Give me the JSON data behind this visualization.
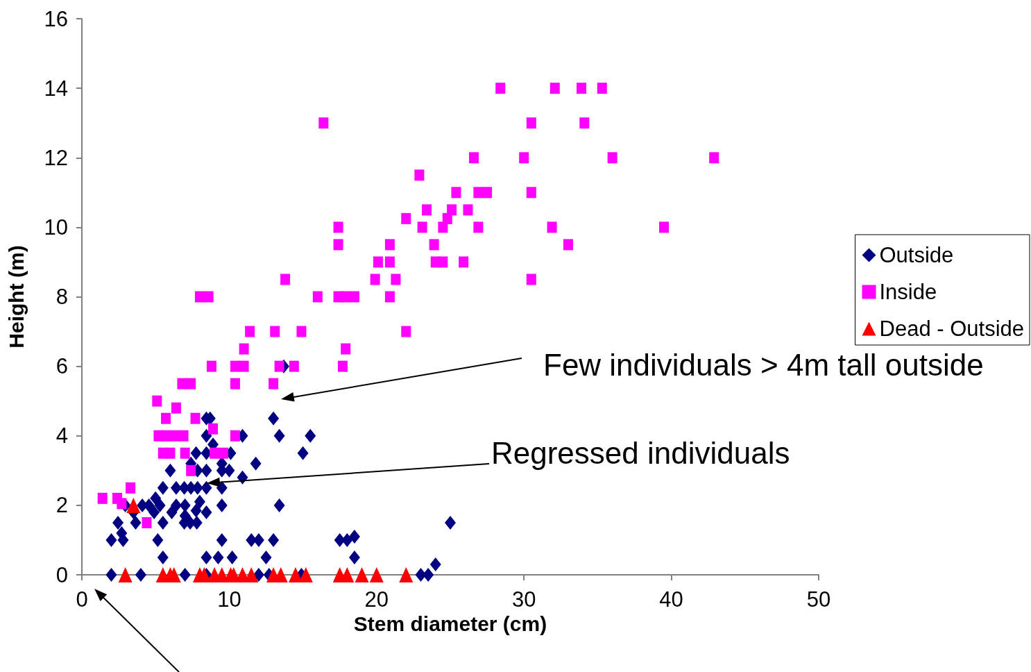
{
  "chart_data": {
    "type": "scatter",
    "xlabel": "Stem diameter (cm)",
    "ylabel": "Height (m)",
    "xlim": [
      0,
      50
    ],
    "xticks": [
      0,
      10,
      20,
      30,
      40,
      50
    ],
    "ylim": [
      0,
      16
    ],
    "yticks": [
      0,
      2,
      4,
      6,
      8,
      10,
      12,
      14,
      16
    ],
    "grid": false,
    "legend": "right",
    "annotations": [
      "Few individuals > 4m tall outside",
      "Regressed individuals"
    ],
    "series": [
      {
        "name": "Outside",
        "color": "#000080",
        "marker": "diamond",
        "x": [
          8.45,
          8.7,
          13.0,
          8.45,
          10.9,
          13.4,
          15.5,
          8.9,
          7.75,
          8.45,
          10.1,
          15.0,
          7.4,
          9.5,
          11.8,
          6.0,
          7.85,
          8.45,
          9.5,
          10.0,
          10.9,
          5.5,
          6.4,
          6.95,
          7.4,
          7.85,
          8.45,
          9.5,
          2.95,
          4.1,
          4.55,
          5.0,
          5.3,
          6.4,
          7.0,
          8.0,
          9.5,
          13.4,
          3.5,
          4.9,
          6.1,
          7.0,
          7.75,
          8.45,
          2.45,
          3.65,
          5.5,
          6.95,
          7.35,
          7.8,
          2.7,
          2.0,
          2.8,
          5.15,
          9.5,
          11.5,
          12.0,
          13.0,
          17.5,
          18.0,
          18.5,
          25.0,
          5.5,
          8.45,
          9.25,
          10.2,
          12.5,
          18.5,
          24.0,
          2.0,
          4.0,
          7.0,
          8.45,
          12.0,
          12.7,
          14.9,
          23.0,
          23.5,
          13.7
        ],
        "values": [
          4.5,
          4.5,
          4.5,
          4.0,
          4.0,
          4.0,
          4.0,
          3.75,
          3.5,
          3.5,
          3.5,
          3.5,
          3.2,
          3.2,
          3.2,
          3.0,
          3.0,
          3.0,
          3.0,
          3.0,
          2.8,
          2.5,
          2.5,
          2.5,
          2.5,
          2.5,
          2.5,
          2.5,
          2.0,
          2.0,
          2.0,
          2.2,
          2.0,
          2.0,
          2.0,
          2.1,
          2.0,
          2.0,
          1.8,
          1.8,
          1.8,
          1.7,
          1.85,
          1.8,
          1.5,
          1.5,
          1.5,
          1.5,
          1.5,
          1.5,
          1.2,
          1.0,
          1.0,
          1.0,
          1.0,
          1.0,
          1.0,
          1.0,
          1.0,
          1.0,
          1.1,
          1.5,
          0.5,
          0.5,
          0.5,
          0.5,
          0.5,
          0.5,
          0.3,
          0,
          0,
          0,
          0,
          0,
          0,
          0,
          0,
          0,
          6.0
        ]
      },
      {
        "name": "Inside",
        "color": "#ff00ff",
        "marker": "square",
        "x": [
          1.4,
          2.4,
          2.7,
          3.3,
          4.4,
          5.1,
          5.7,
          6.4,
          6.8,
          7.4,
          7.7,
          5.2,
          5.7,
          6.3,
          6.9,
          5.5,
          6.0,
          7.0,
          7.4,
          8.0,
          8.6,
          8.8,
          8.9,
          9.0,
          9.6,
          10.4,
          10.4,
          10.4,
          11.0,
          11.0,
          11.4,
          13.0,
          13.1,
          13.4,
          13.8,
          14.4,
          14.9,
          16.0,
          16.4,
          17.4,
          17.4,
          17.4,
          17.9,
          18.5,
          17.9,
          17.7,
          19.9,
          20.1,
          20.9,
          20.9,
          20.9,
          21.3,
          22.0,
          22.0,
          22.9,
          23.1,
          23.4,
          23.9,
          24.0,
          24.5,
          24.5,
          24.8,
          25.1,
          25.4,
          25.9,
          26.2,
          26.6,
          26.9,
          26.9,
          27.5,
          28.4,
          30.0,
          30.5,
          30.5,
          30.5,
          31.9,
          32.1,
          33.0,
          33.9,
          34.1,
          35.3,
          36.0,
          39.5,
          42.9
        ],
        "values": [
          2.2,
          2.2,
          2.05,
          2.5,
          1.5,
          5.0,
          4.5,
          4.8,
          5.5,
          5.5,
          4.5,
          4.0,
          4.0,
          4.0,
          4.0,
          3.5,
          3.5,
          3.5,
          3.0,
          8.0,
          8.0,
          6.0,
          4.2,
          3.5,
          3.5,
          4.0,
          5.5,
          6.0,
          6.0,
          6.5,
          7.0,
          5.5,
          7.0,
          6.0,
          8.5,
          6.0,
          7.0,
          8.0,
          13.0,
          10.0,
          9.5,
          8.0,
          8.0,
          8.0,
          6.5,
          6.0,
          8.5,
          9.0,
          9.0,
          9.5,
          8.0,
          8.5,
          7.0,
          10.25,
          11.5,
          10.0,
          10.5,
          9.5,
          9.0,
          9.0,
          10.0,
          10.25,
          10.5,
          11.0,
          9.0,
          10.5,
          12.0,
          11.0,
          10.0,
          11.0,
          14.0,
          12.0,
          13.0,
          11.0,
          8.5,
          10.0,
          14.0,
          9.5,
          14.0,
          13.0,
          14.0,
          12.0,
          10.0,
          12.0
        ]
      },
      {
        "name": "Dead - Outside",
        "color": "#ff0000",
        "marker": "triangle",
        "x": [
          3.5,
          2.95,
          5.5,
          6.0,
          6.25,
          8.0,
          8.3,
          9.0,
          9.5,
          10.1,
          10.3,
          10.9,
          11.5,
          13.0,
          13.5,
          14.5,
          15.2,
          17.5,
          18.0,
          19.0,
          20.0,
          22.0
        ],
        "values": [
          2.0,
          0,
          0,
          0,
          0,
          0,
          0,
          0,
          0,
          0,
          0,
          0,
          0,
          0,
          0,
          0,
          0,
          0,
          0,
          0,
          0,
          0
        ]
      }
    ]
  }
}
